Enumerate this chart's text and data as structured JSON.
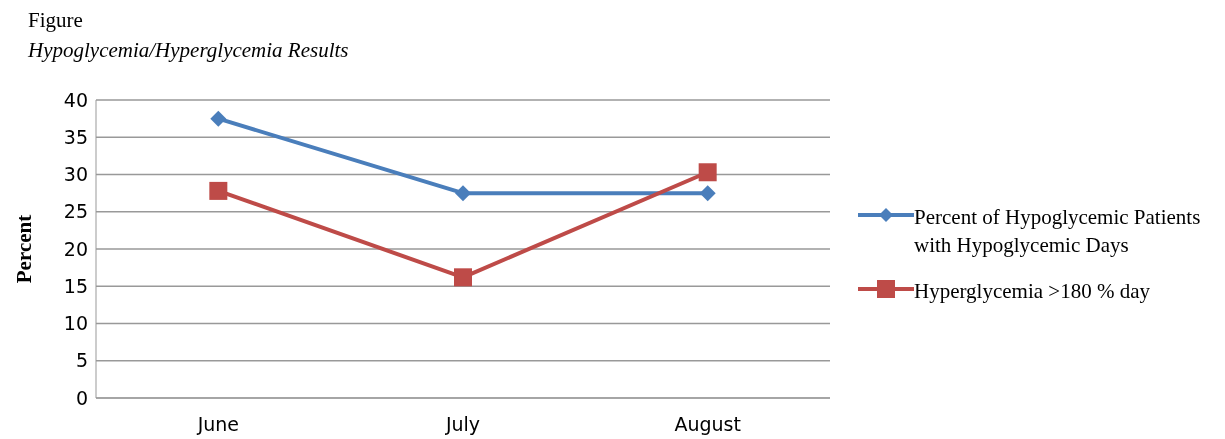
{
  "chart_data": {
    "type": "line",
    "title": "Figure",
    "subtitle": "Hypoglycemia/Hyperglycemia Results",
    "ylabel": "Percent",
    "categories": [
      "June",
      "July",
      "August"
    ],
    "series": [
      {
        "name": "Percent of Hypoglycemic Patients with Hypoglycemic Days",
        "color": "#4a7ebb",
        "marker": "diamond",
        "values": [
          37.5,
          27.5,
          27.5
        ]
      },
      {
        "name": "Hyperglycemia >180 % day",
        "color": "#be4b48",
        "marker": "square",
        "values": [
          27.8,
          16.2,
          30.3
        ]
      }
    ],
    "ylim": [
      0,
      40
    ],
    "yticks": [
      0,
      5,
      10,
      15,
      20,
      25,
      30,
      35,
      40
    ],
    "grid": "y",
    "legend": "right",
    "line_style": "solid"
  }
}
